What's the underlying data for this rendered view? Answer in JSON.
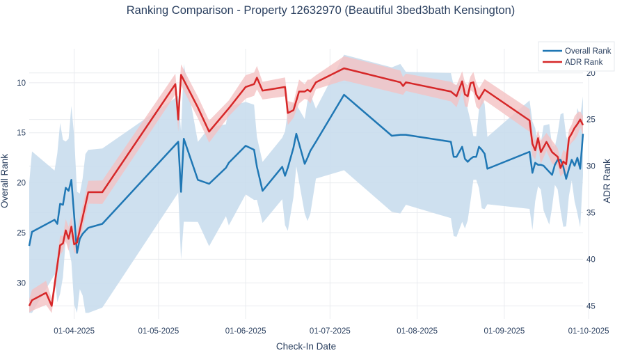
{
  "chart_data": {
    "type": "line",
    "title": "Ranking Comparison - Property 12632970 (Beautiful 3bed3bath Kensington)",
    "xlabel": "Check-In Date",
    "ylabel_left": "Overall Rank",
    "ylabel_right": "ADR Rank",
    "x_ticks": [
      "01-04-2025",
      "01-05-2025",
      "01-06-2025",
      "01-07-2025",
      "01-08-2025",
      "01-09-2025",
      "01-10-2025"
    ],
    "left_ticks": [
      "10",
      "15",
      "20",
      "25",
      "30"
    ],
    "right_ticks": [
      "20",
      "25",
      "30",
      "35",
      "40",
      "45"
    ],
    "left_range_reversed": [
      6.6,
      33.6
    ],
    "right_range_reversed": [
      17.4,
      46.4
    ],
    "legend": [
      "Overall Rank",
      "ADR Rank"
    ],
    "colors": {
      "overall": "#1f77b4",
      "adr": "#d62728",
      "overall_band": "#c5dbec",
      "adr_band": "#f4c2c3",
      "grid": "#e9ebef"
    },
    "series": [
      {
        "name": "Overall Rank",
        "axis": "left",
        "x": [
          0,
          1,
          9,
          10,
          11,
          12,
          13,
          14,
          15,
          16,
          17,
          18,
          19,
          20,
          21,
          26,
          53,
          54,
          55,
          60,
          64,
          70,
          71,
          77,
          80,
          81,
          83,
          90,
          91,
          92,
          94,
          95,
          98,
          99,
          100,
          102,
          112,
          129,
          132,
          134,
          150,
          151,
          152,
          154,
          155,
          156,
          157,
          158,
          159,
          160,
          161,
          162,
          163,
          178,
          179,
          180,
          181,
          182,
          183,
          185,
          186,
          187,
          188,
          189,
          190,
          191,
          192,
          193,
          194,
          195,
          196,
          197
        ],
        "y": [
          26.3,
          24.9,
          23.7,
          24.1,
          22.1,
          22.2,
          20.5,
          20.8,
          19.7,
          23.3,
          27.0,
          25.6,
          25.1,
          24.8,
          24.5,
          24.1,
          15.9,
          20.9,
          15.6,
          19.7,
          20.1,
          18.5,
          18.0,
          16.3,
          16.7,
          18.4,
          20.8,
          18.4,
          19.3,
          18.5,
          16.5,
          15.1,
          18.1,
          17.5,
          16.8,
          15.9,
          11.2,
          15.3,
          15.2,
          15.2,
          15.9,
          17.4,
          17.4,
          16.4,
          17.6,
          17.9,
          17.6,
          17.4,
          17.4,
          16.4,
          16.7,
          17.1,
          18.6,
          16.9,
          19.0,
          18.0,
          18.2,
          18.2,
          18.3,
          18.9,
          19.2,
          18.2,
          17.7,
          17.7,
          18.4,
          19.6,
          18.6,
          17.7,
          18.3,
          17.5,
          18.6,
          15.1
        ]
      },
      {
        "name": "ADR Rank",
        "axis": "right",
        "x": [
          0,
          1,
          6,
          8,
          11,
          12,
          13,
          14,
          15,
          16,
          17,
          21,
          26,
          52,
          53,
          54,
          60,
          64,
          71,
          77,
          80,
          81,
          83,
          91,
          92,
          94,
          96,
          98,
          99,
          100,
          102,
          112,
          132,
          133,
          134,
          150,
          152,
          154,
          155,
          156,
          157,
          158,
          159,
          160,
          162,
          178,
          179,
          180,
          181,
          182,
          184,
          186,
          188,
          189,
          190,
          191,
          192,
          193,
          194,
          195,
          196,
          197
        ],
        "y": [
          45.0,
          44.4,
          43.6,
          45.0,
          38.5,
          38.3,
          36.9,
          37.8,
          36.5,
          38.4,
          38.2,
          32.8,
          32.8,
          21.2,
          25.0,
          20.2,
          23.7,
          26.3,
          23.8,
          21.5,
          21.2,
          20.5,
          21.9,
          21.5,
          24.3,
          24.0,
          22.0,
          22.0,
          21.8,
          22.0,
          21.0,
          19.5,
          21.0,
          21.4,
          21.0,
          22.0,
          22.5,
          20.9,
          22.3,
          22.5,
          21.1,
          21.0,
          22.3,
          22.8,
          21.8,
          25.1,
          27.6,
          28.3,
          27.0,
          28.5,
          27.4,
          28.5,
          29.0,
          30.2,
          29.5,
          29.8,
          27.0,
          26.5,
          25.9,
          25.5,
          25.0,
          25.6
        ]
      }
    ]
  }
}
